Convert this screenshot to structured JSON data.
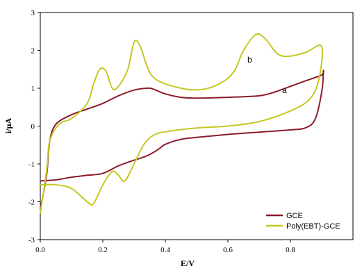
{
  "chart_data": {
    "type": "line",
    "xlabel": "E/V",
    "ylabel": "i/μA",
    "xlim": [
      0,
      1
    ],
    "ylim": [
      -3,
      3
    ],
    "x_ticks": [
      {
        "value": 0,
        "label": "0.0"
      },
      {
        "value": 0.2,
        "label": "0.2"
      },
      {
        "value": 0.4,
        "label": "0.4"
      },
      {
        "value": 0.6,
        "label": "0.6"
      },
      {
        "value": 0.8,
        "label": "0.8"
      }
    ],
    "y_ticks": [
      {
        "value": 3,
        "label": "3"
      },
      {
        "value": 2,
        "label": "2"
      },
      {
        "value": 1,
        "label": "1"
      },
      {
        "value": 0,
        "label": "0"
      },
      {
        "value": -1,
        "label": "-1"
      },
      {
        "value": -2,
        "label": "-2"
      },
      {
        "value": -3,
        "label": "-3"
      }
    ],
    "grid": false,
    "legend_position": "bottom-right",
    "series": [
      {
        "name": "GCE",
        "curve_label": "a",
        "color": "#8b1a2b",
        "points": [
          [
            0.0,
            -1.45
          ],
          [
            0.05,
            -1.42
          ],
          [
            0.1,
            -1.35
          ],
          [
            0.15,
            -1.3
          ],
          [
            0.2,
            -1.25
          ],
          [
            0.25,
            -1.05
          ],
          [
            0.3,
            -0.9
          ],
          [
            0.33,
            -0.82
          ],
          [
            0.35,
            -0.75
          ],
          [
            0.38,
            -0.6
          ],
          [
            0.4,
            -0.48
          ],
          [
            0.45,
            -0.35
          ],
          [
            0.5,
            -0.3
          ],
          [
            0.6,
            -0.22
          ],
          [
            0.7,
            -0.16
          ],
          [
            0.8,
            -0.1
          ],
          [
            0.85,
            -0.04
          ],
          [
            0.88,
            0.2
          ],
          [
            0.9,
            0.9
          ],
          [
            0.905,
            1.45
          ],
          [
            0.9,
            1.35
          ],
          [
            0.85,
            1.2
          ],
          [
            0.8,
            1.05
          ],
          [
            0.75,
            0.9
          ],
          [
            0.7,
            0.8
          ],
          [
            0.6,
            0.76
          ],
          [
            0.5,
            0.74
          ],
          [
            0.45,
            0.76
          ],
          [
            0.4,
            0.85
          ],
          [
            0.36,
            0.98
          ],
          [
            0.34,
            1.0
          ],
          [
            0.3,
            0.95
          ],
          [
            0.25,
            0.8
          ],
          [
            0.2,
            0.6
          ],
          [
            0.15,
            0.45
          ],
          [
            0.1,
            0.3
          ],
          [
            0.05,
            0.05
          ],
          [
            0.03,
            -0.4
          ],
          [
            0.02,
            -1.3
          ],
          [
            0.0,
            -2.2
          ]
        ]
      },
      {
        "name": "Poly(EBT)-GCE",
        "curve_label": "b",
        "color": "#c6c724",
        "points": [
          [
            0.0,
            -1.55
          ],
          [
            0.05,
            -1.55
          ],
          [
            0.1,
            -1.65
          ],
          [
            0.15,
            -2.0
          ],
          [
            0.17,
            -2.05
          ],
          [
            0.2,
            -1.55
          ],
          [
            0.23,
            -1.2
          ],
          [
            0.25,
            -1.3
          ],
          [
            0.27,
            -1.45
          ],
          [
            0.3,
            -1.0
          ],
          [
            0.33,
            -0.5
          ],
          [
            0.36,
            -0.25
          ],
          [
            0.4,
            -0.15
          ],
          [
            0.5,
            -0.05
          ],
          [
            0.6,
            0.0
          ],
          [
            0.7,
            0.12
          ],
          [
            0.8,
            0.4
          ],
          [
            0.86,
            0.7
          ],
          [
            0.89,
            1.2
          ],
          [
            0.9,
            2.1
          ],
          [
            0.85,
            1.95
          ],
          [
            0.8,
            1.85
          ],
          [
            0.76,
            1.9
          ],
          [
            0.72,
            2.3
          ],
          [
            0.69,
            2.42
          ],
          [
            0.65,
            2.0
          ],
          [
            0.62,
            1.45
          ],
          [
            0.58,
            1.15
          ],
          [
            0.52,
            0.97
          ],
          [
            0.45,
            1.0
          ],
          [
            0.36,
            1.3
          ],
          [
            0.32,
            2.1
          ],
          [
            0.3,
            2.22
          ],
          [
            0.28,
            1.5
          ],
          [
            0.25,
            1.05
          ],
          [
            0.23,
            1.0
          ],
          [
            0.21,
            1.45
          ],
          [
            0.19,
            1.5
          ],
          [
            0.17,
            1.1
          ],
          [
            0.15,
            0.6
          ],
          [
            0.1,
            0.2
          ],
          [
            0.06,
            0.05
          ],
          [
            0.03,
            -0.4
          ],
          [
            0.02,
            -1.2
          ],
          [
            0.0,
            -2.3
          ]
        ]
      }
    ]
  }
}
